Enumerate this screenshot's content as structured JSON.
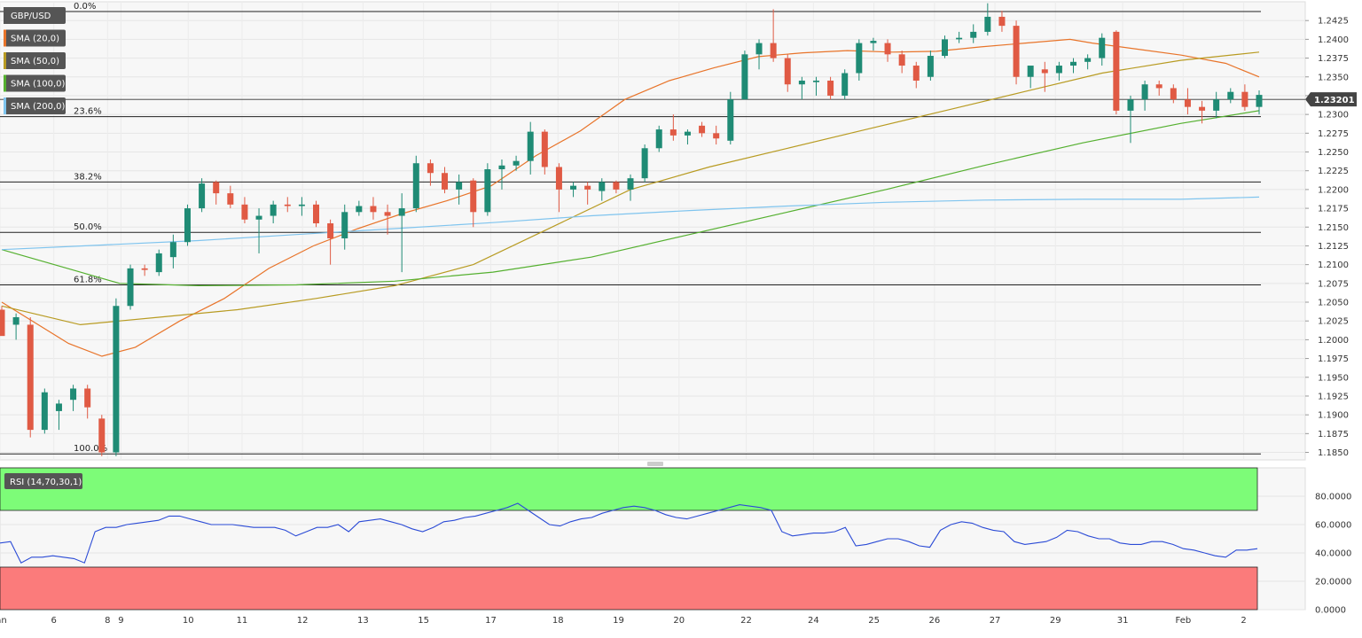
{
  "chart_data": {
    "type": "candlestick",
    "symbol": "GBP/USD",
    "last_price": "1.23201",
    "price_axis": {
      "ylim": [
        1.184,
        1.245
      ],
      "ticks": [
        "1.2425",
        "1.2400",
        "1.2375",
        "1.2350",
        "1.2325",
        "1.2300",
        "1.2275",
        "1.2250",
        "1.2225",
        "1.2200",
        "1.2175",
        "1.2150",
        "1.2125",
        "1.2100",
        "1.2075",
        "1.2050",
        "1.2025",
        "1.2000",
        "1.1975",
        "1.1950",
        "1.1925",
        "1.1900",
        "1.1875",
        "1.1850"
      ]
    },
    "x_axis": {
      "range": [
        0,
        92
      ],
      "labels": [
        {
          "text": "Jan",
          "x": 0
        },
        {
          "text": "6",
          "x": 4
        },
        {
          "text": "8",
          "x": 8
        },
        {
          "text": "9",
          "x": 9
        },
        {
          "text": "10",
          "x": 14
        },
        {
          "text": "11",
          "x": 18
        },
        {
          "text": "12",
          "x": 22.5
        },
        {
          "text": "13",
          "x": 27
        },
        {
          "text": "15",
          "x": 31.5
        },
        {
          "text": "17",
          "x": 36.5
        },
        {
          "text": "18",
          "x": 41.5
        },
        {
          "text": "19",
          "x": 46
        },
        {
          "text": "20",
          "x": 50.5
        },
        {
          "text": "22",
          "x": 55.5
        },
        {
          "text": "24",
          "x": 60.5
        },
        {
          "text": "25",
          "x": 65
        },
        {
          "text": "26",
          "x": 69.5
        },
        {
          "text": "27",
          "x": 74
        },
        {
          "text": "29",
          "x": 78.5
        },
        {
          "text": "31",
          "x": 83.5
        },
        {
          "text": "Feb",
          "x": 88
        },
        {
          "text": "2",
          "x": 92.5
        }
      ]
    },
    "legend": [
      {
        "label": "GBP/USD",
        "color": "#555555"
      },
      {
        "label": "SMA (20,0)",
        "color": "#e8742a"
      },
      {
        "label": "SMA (50,0)",
        "color": "#b89b22"
      },
      {
        "label": "SMA (100,0)",
        "color": "#55b030"
      },
      {
        "label": "SMA (200,0)",
        "color": "#7fc4ee"
      }
    ],
    "fibonacci": [
      {
        "label": "0.0%",
        "price": 1.2437
      },
      {
        "label": "23.6%",
        "price": 1.2297
      },
      {
        "label": "38.2%",
        "price": 1.221
      },
      {
        "label": "50.0%",
        "price": 1.2143
      },
      {
        "label": "61.8%",
        "price": 1.2073
      },
      {
        "label": "100.0%",
        "price": 1.1848
      }
    ],
    "reference_line": 1.232,
    "candles": [
      [
        1.204,
        1.2045,
        1.201,
        1.2005
      ],
      [
        1.202,
        1.2035,
        1.2,
        1.203
      ],
      [
        1.202,
        1.203,
        1.187,
        1.188
      ],
      [
        1.188,
        1.1935,
        1.1875,
        1.193
      ],
      [
        1.1905,
        1.192,
        1.188,
        1.1915
      ],
      [
        1.192,
        1.194,
        1.1905,
        1.1935
      ],
      [
        1.1935,
        1.194,
        1.1895,
        1.191
      ],
      [
        1.1895,
        1.19,
        1.1845,
        1.185
      ],
      [
        1.185,
        1.2055,
        1.1845,
        1.2045
      ],
      [
        1.2045,
        1.21,
        1.204,
        1.2095
      ],
      [
        1.2095,
        1.21,
        1.2085,
        1.2093
      ],
      [
        1.209,
        1.212,
        1.2085,
        1.2115
      ],
      [
        1.211,
        1.214,
        1.2095,
        1.213
      ],
      [
        1.213,
        1.218,
        1.2125,
        1.2175
      ],
      [
        1.2175,
        1.2215,
        1.217,
        1.2208
      ],
      [
        1.221,
        1.2212,
        1.218,
        1.2195
      ],
      [
        1.2195,
        1.2205,
        1.2175,
        1.218
      ],
      [
        1.218,
        1.219,
        1.2155,
        1.216
      ],
      [
        1.216,
        1.2175,
        1.2115,
        1.2165
      ],
      [
        1.2165,
        1.2185,
        1.2155,
        1.218
      ],
      [
        1.218,
        1.219,
        1.217,
        1.2178
      ],
      [
        1.2178,
        1.219,
        1.2165,
        1.218
      ],
      [
        1.218,
        1.2185,
        1.215,
        1.2155
      ],
      [
        1.2155,
        1.216,
        1.21,
        1.2135
      ],
      [
        1.2135,
        1.218,
        1.212,
        1.217
      ],
      [
        1.217,
        1.2185,
        1.2165,
        1.2178
      ],
      [
        1.2178,
        1.219,
        1.216,
        1.217
      ],
      [
        1.217,
        1.218,
        1.214,
        1.2165
      ],
      [
        1.2165,
        1.2195,
        1.209,
        1.2175
      ],
      [
        1.2175,
        1.2245,
        1.217,
        1.2235
      ],
      [
        1.2235,
        1.224,
        1.2205,
        1.2222
      ],
      [
        1.2222,
        1.223,
        1.2195,
        1.22
      ],
      [
        1.22,
        1.222,
        1.218,
        1.221
      ],
      [
        1.2212,
        1.2215,
        1.215,
        1.217
      ],
      [
        1.217,
        1.2235,
        1.2165,
        1.2227
      ],
      [
        1.2227,
        1.224,
        1.22,
        1.2232
      ],
      [
        1.2232,
        1.2245,
        1.2225,
        1.2238
      ],
      [
        1.2238,
        1.229,
        1.222,
        1.2277
      ],
      [
        1.2277,
        1.228,
        1.222,
        1.223
      ],
      [
        1.223,
        1.2235,
        1.217,
        1.22
      ],
      [
        1.22,
        1.221,
        1.219,
        1.2205
      ],
      [
        1.2205,
        1.221,
        1.218,
        1.22
      ],
      [
        1.2198,
        1.2215,
        1.2185,
        1.221
      ],
      [
        1.221,
        1.2212,
        1.2195,
        1.22
      ],
      [
        1.22,
        1.222,
        1.2185,
        1.2215
      ],
      [
        1.2215,
        1.226,
        1.221,
        1.2255
      ],
      [
        1.2255,
        1.2285,
        1.225,
        1.228
      ],
      [
        1.228,
        1.23,
        1.2265,
        1.2272
      ],
      [
        1.2272,
        1.228,
        1.226,
        1.2277
      ],
      [
        1.2285,
        1.229,
        1.227,
        1.2275
      ],
      [
        1.2275,
        1.2285,
        1.226,
        1.2268
      ],
      [
        1.2265,
        1.233,
        1.226,
        1.232
      ],
      [
        1.232,
        1.2385,
        1.232,
        1.238
      ],
      [
        1.238,
        1.24,
        1.236,
        1.2395
      ],
      [
        1.2395,
        1.244,
        1.237,
        1.2375
      ],
      [
        1.2375,
        1.238,
        1.233,
        1.234
      ],
      [
        1.234,
        1.235,
        1.232,
        1.2345
      ],
      [
        1.2343,
        1.235,
        1.2325,
        1.2345
      ],
      [
        1.2345,
        1.235,
        1.232,
        1.2325
      ],
      [
        1.2325,
        1.236,
        1.232,
        1.2355
      ],
      [
        1.2355,
        1.24,
        1.2345,
        1.2395
      ],
      [
        1.2395,
        1.2402,
        1.2385,
        1.2398
      ],
      [
        1.2395,
        1.24,
        1.237,
        1.238
      ],
      [
        1.238,
        1.2385,
        1.2355,
        1.2365
      ],
      [
        1.2365,
        1.237,
        1.2335,
        1.2345
      ],
      [
        1.235,
        1.2385,
        1.2345,
        1.2378
      ],
      [
        1.2378,
        1.2405,
        1.2375,
        1.24
      ],
      [
        1.24,
        1.241,
        1.2395,
        1.2402
      ],
      [
        1.2402,
        1.242,
        1.2395,
        1.241
      ],
      [
        1.241,
        1.2448,
        1.2405,
        1.243
      ],
      [
        1.243,
        1.2438,
        1.241,
        1.2418
      ],
      [
        1.2418,
        1.2425,
        1.234,
        1.235
      ],
      [
        1.235,
        1.236,
        1.2335,
        1.2365
      ],
      [
        1.236,
        1.237,
        1.233,
        1.2355
      ],
      [
        1.2355,
        1.237,
        1.2345,
        1.2365
      ],
      [
        1.2365,
        1.2375,
        1.2355,
        1.237
      ],
      [
        1.237,
        1.238,
        1.236,
        1.2375
      ],
      [
        1.2375,
        1.2408,
        1.2365,
        1.2402
      ],
      [
        1.241,
        1.2412,
        1.23,
        1.2305
      ],
      [
        1.2305,
        1.2325,
        1.2262,
        1.232
      ],
      [
        1.232,
        1.2345,
        1.2305,
        1.234
      ],
      [
        1.234,
        1.2345,
        1.2325,
        1.2335
      ],
      [
        1.2335,
        1.234,
        1.2315,
        1.232
      ],
      [
        1.232,
        1.2335,
        1.23,
        1.231
      ],
      [
        1.231,
        1.2318,
        1.2288,
        1.2305
      ],
      [
        1.2305,
        1.233,
        1.2295,
        1.232
      ],
      [
        1.232,
        1.2335,
        1.2315,
        1.233
      ],
      [
        1.233,
        1.234,
        1.2305,
        1.231
      ],
      [
        1.231,
        1.2332,
        1.23,
        1.2326
      ]
    ],
    "sma": {
      "20": [
        [
          0,
          1.205
        ],
        [
          6,
          1.1995
        ],
        [
          9,
          1.1978
        ],
        [
          12,
          1.199
        ],
        [
          16,
          1.2025
        ],
        [
          20,
          1.2055
        ],
        [
          24,
          1.2095
        ],
        [
          28,
          1.2125
        ],
        [
          32,
          1.2148
        ],
        [
          36,
          1.2168
        ],
        [
          40,
          1.2185
        ],
        [
          44,
          1.2205
        ],
        [
          48,
          1.2245
        ],
        [
          52,
          1.2278
        ],
        [
          56,
          1.232
        ],
        [
          60,
          1.2345
        ],
        [
          64,
          1.2362
        ],
        [
          68,
          1.2377
        ],
        [
          72,
          1.2382
        ],
        [
          76,
          1.2385
        ],
        [
          80,
          1.2383
        ],
        [
          84,
          1.2384
        ],
        [
          88,
          1.239
        ],
        [
          92,
          1.2395
        ],
        [
          96,
          1.24
        ],
        [
          98,
          1.2395
        ],
        [
          102,
          1.2387
        ],
        [
          106,
          1.2379
        ],
        [
          110,
          1.2368
        ],
        [
          113,
          1.235
        ]
      ],
      "50": [
        [
          0,
          1.2045
        ],
        [
          8,
          1.202
        ],
        [
          16,
          1.203
        ],
        [
          24,
          1.204
        ],
        [
          32,
          1.2055
        ],
        [
          40,
          1.2072
        ],
        [
          48,
          1.21
        ],
        [
          56,
          1.215
        ],
        [
          64,
          1.22
        ],
        [
          72,
          1.223
        ],
        [
          80,
          1.2255
        ],
        [
          88,
          1.228
        ],
        [
          96,
          1.2305
        ],
        [
          104,
          1.233
        ],
        [
          112,
          1.2355
        ],
        [
          120,
          1.2372
        ],
        [
          128,
          1.2383
        ]
      ],
      "100": [
        [
          0,
          1.212
        ],
        [
          8,
          1.209
        ],
        [
          12,
          1.2075
        ],
        [
          20,
          1.2072
        ],
        [
          30,
          1.2073
        ],
        [
          40,
          1.2078
        ],
        [
          50,
          1.209
        ],
        [
          60,
          1.211
        ],
        [
          70,
          1.214
        ],
        [
          80,
          1.217
        ],
        [
          90,
          1.22
        ],
        [
          100,
          1.2232
        ],
        [
          110,
          1.2262
        ],
        [
          120,
          1.2288
        ],
        [
          128,
          1.2305
        ]
      ],
      "200": [
        [
          0,
          1.212
        ],
        [
          10,
          1.2126
        ],
        [
          20,
          1.2132
        ],
        [
          30,
          1.214
        ],
        [
          40,
          1.2148
        ],
        [
          50,
          1.2156
        ],
        [
          60,
          1.2165
        ],
        [
          70,
          1.2172
        ],
        [
          80,
          1.2178
        ],
        [
          90,
          1.2183
        ],
        [
          100,
          1.2186
        ],
        [
          110,
          1.2187
        ],
        [
          120,
          1.2187
        ],
        [
          128,
          1.219
        ]
      ]
    },
    "rsi": {
      "label": "RSI (14,70,30,1)",
      "ylim": [
        0,
        100
      ],
      "ticks": [
        "80.0000",
        "60.0000",
        "40.0000",
        "20.0000",
        "0.0000"
      ],
      "overbought": 70,
      "oversold": 30,
      "values": [
        47,
        48,
        33,
        37,
        37,
        38,
        37,
        36,
        33,
        55,
        58,
        58,
        60,
        61,
        62,
        63,
        66,
        66,
        64,
        62,
        60,
        60,
        60,
        59,
        58,
        58,
        58,
        56,
        52,
        55,
        58,
        58,
        60,
        55,
        62,
        63,
        64,
        62,
        60,
        57,
        55,
        58,
        62,
        63,
        65,
        66,
        68,
        70,
        72,
        75,
        70,
        65,
        60,
        59,
        62,
        64,
        65,
        68,
        70,
        72,
        73,
        72,
        70,
        67,
        65,
        64,
        66,
        68,
        70,
        72,
        74,
        73,
        72,
        70,
        55,
        52,
        53,
        54,
        54,
        55,
        58,
        45,
        46,
        48,
        50,
        50,
        48,
        45,
        44,
        56,
        60,
        62,
        61,
        58,
        56,
        55,
        48,
        46,
        47,
        48,
        51,
        56,
        55,
        52,
        50,
        50,
        47,
        46,
        46,
        48,
        48,
        46,
        43,
        42,
        40,
        38,
        37,
        42,
        42,
        43
      ]
    }
  }
}
